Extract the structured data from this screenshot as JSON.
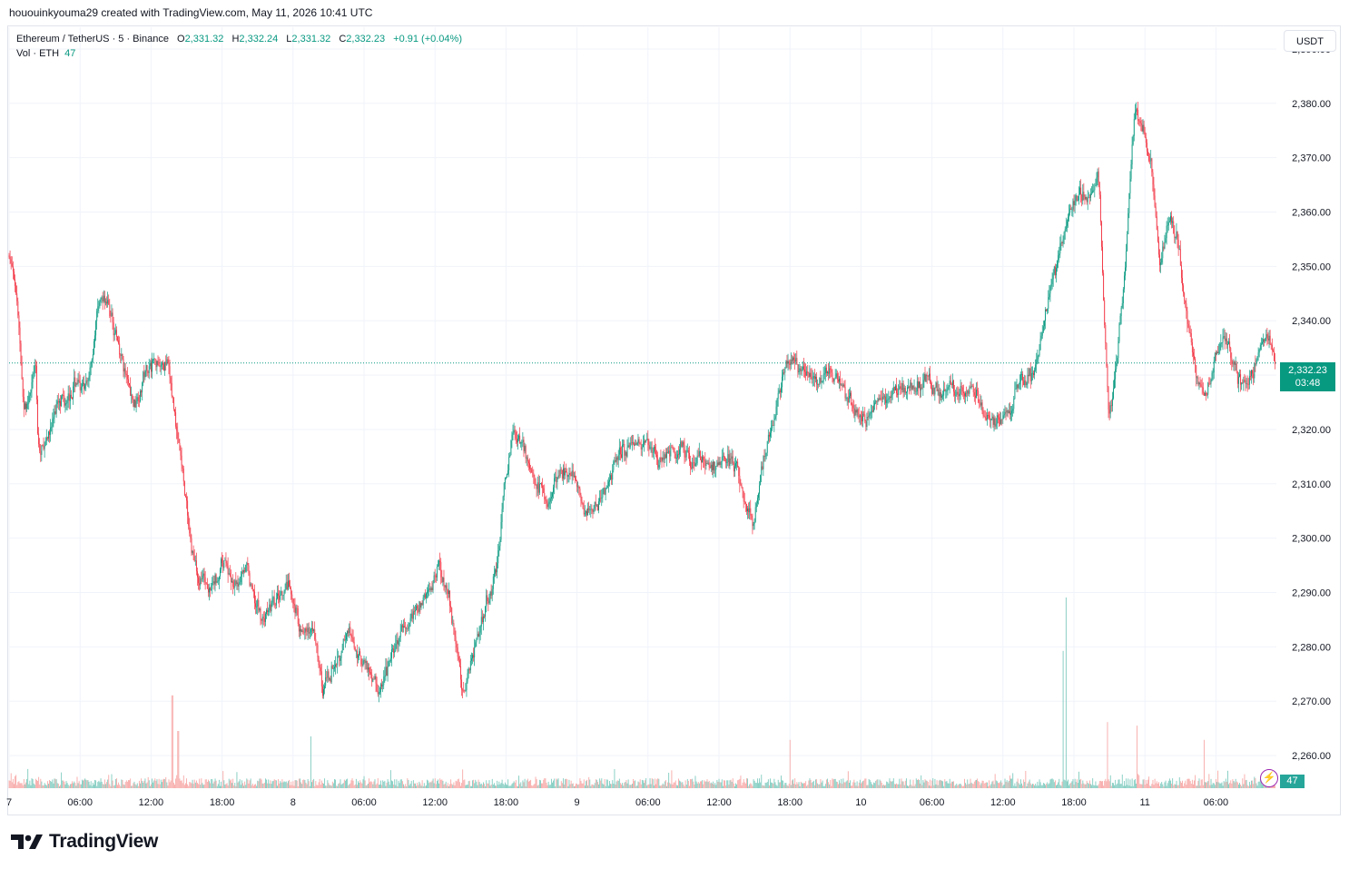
{
  "caption": "hououinkyouma29 created with TradingView.com, May 11, 2026 10:41 UTC",
  "legend": {
    "symbol": "Ethereum / TetherUS · 5 · Binance",
    "o_label": "O",
    "o_value": "2,331.32",
    "h_label": "H",
    "h_value": "2,332.24",
    "l_label": "L",
    "l_value": "2,331.32",
    "c_label": "C",
    "c_value": "2,332.23",
    "change": "+0.91 (+0.04%)",
    "vol_label": "Vol · ETH",
    "vol_value": "47"
  },
  "price_scale": {
    "unit_button": "USDT"
  },
  "last_price": {
    "value": "2,332.23",
    "countdown": "03:48"
  },
  "volume_tag": "47",
  "brand": {
    "name": "TradingView",
    "logo_icon": "tradingview-logo-icon"
  },
  "colors": {
    "up": "#089981",
    "down": "#f23645",
    "up_vol": "#7fcbbf",
    "down_vol": "#f7a9a7",
    "grid": "#f0f3fa"
  },
  "chart_data": {
    "type": "candlestick",
    "instrument": "Ethereum / TetherUS",
    "interval": "5",
    "exchange": "Binance",
    "ylim": [
      2254,
      2394
    ],
    "yticks": [
      2260,
      2270,
      2280,
      2290,
      2300,
      2310,
      2320,
      2330,
      2340,
      2350,
      2360,
      2370,
      2380,
      2390
    ],
    "ytick_labels": [
      "2,260.00",
      "2,270.00",
      "2,280.00",
      "2,290.00",
      "2,300.00",
      "2,310.00",
      "2,320.00",
      "2,330.00",
      "2,340.00",
      "2,350.00",
      "2,360.00",
      "2,370.00",
      "2,380.00",
      "2,390.00"
    ],
    "x_ticks": [
      {
        "label": "7",
        "h": 0
      },
      {
        "label": "06:00",
        "h": 6
      },
      {
        "label": "12:00",
        "h": 12
      },
      {
        "label": "18:00",
        "h": 18
      },
      {
        "label": "8",
        "h": 24
      },
      {
        "label": "06:00",
        "h": 30
      },
      {
        "label": "12:00",
        "h": 36
      },
      {
        "label": "18:00",
        "h": 42
      },
      {
        "label": "9",
        "h": 48
      },
      {
        "label": "06:00",
        "h": 54
      },
      {
        "label": "12:00",
        "h": 60
      },
      {
        "label": "18:00",
        "h": 66
      },
      {
        "label": "10",
        "h": 72
      },
      {
        "label": "06:00",
        "h": 78
      },
      {
        "label": "12:00",
        "h": 84
      },
      {
        "label": "18:00",
        "h": 90
      },
      {
        "label": "11",
        "h": 96
      },
      {
        "label": "06:00",
        "h": 102
      }
    ],
    "x_range_hours": [
      0,
      107
    ],
    "price_path": [
      [
        0,
        2352
      ],
      [
        0.7,
        2342
      ],
      [
        1.2,
        2322
      ],
      [
        2.2,
        2333
      ],
      [
        2.4,
        2315
      ],
      [
        3.3,
        2319
      ],
      [
        4.0,
        2325
      ],
      [
        5,
        2326
      ],
      [
        5.8,
        2330
      ],
      [
        6.3,
        2326
      ],
      [
        6.7,
        2330
      ],
      [
        7.5,
        2343
      ],
      [
        8.2,
        2344
      ],
      [
        9.3,
        2334
      ],
      [
        10.5,
        2324
      ],
      [
        11.3,
        2330
      ],
      [
        12.3,
        2333
      ],
      [
        13.3,
        2332
      ],
      [
        14,
        2322
      ],
      [
        14.7,
        2310
      ],
      [
        15.3,
        2298
      ],
      [
        16,
        2293
      ],
      [
        17,
        2290
      ],
      [
        18.2,
        2296
      ],
      [
        19,
        2290
      ],
      [
        19.8,
        2296
      ],
      [
        20.5,
        2290
      ],
      [
        21.3,
        2285
      ],
      [
        22.3,
        2288
      ],
      [
        23.5,
        2291
      ],
      [
        24.5,
        2284
      ],
      [
        25.7,
        2282
      ],
      [
        26.5,
        2272
      ],
      [
        27.5,
        2278
      ],
      [
        28.7,
        2282
      ],
      [
        29.5,
        2279
      ],
      [
        30.5,
        2275
      ],
      [
        31.3,
        2271
      ],
      [
        32.2,
        2278
      ],
      [
        33.5,
        2284
      ],
      [
        34.7,
        2288
      ],
      [
        35.5,
        2290
      ],
      [
        36.3,
        2295
      ],
      [
        37,
        2290
      ],
      [
        37.7,
        2281
      ],
      [
        38.3,
        2272
      ],
      [
        39.3,
        2280
      ],
      [
        40.3,
        2288
      ],
      [
        41.2,
        2295
      ],
      [
        41.8,
        2310
      ],
      [
        42.5,
        2319
      ],
      [
        43.3,
        2318
      ],
      [
        44,
        2313
      ],
      [
        45.3,
        2306
      ],
      [
        46.3,
        2311
      ],
      [
        47.3,
        2312
      ],
      [
        48.2,
        2307
      ],
      [
        49.3,
        2304
      ],
      [
        50.5,
        2310
      ],
      [
        51.5,
        2316
      ],
      [
        52.7,
        2317
      ],
      [
        53.7,
        2318
      ],
      [
        54.7,
        2314
      ],
      [
        55.7,
        2316
      ],
      [
        56.7,
        2317
      ],
      [
        57.5,
        2314
      ],
      [
        58.5,
        2314
      ],
      [
        59.5,
        2313
      ],
      [
        60.5,
        2315
      ],
      [
        61.5,
        2313
      ],
      [
        62.3,
        2305
      ],
      [
        62.8,
        2302
      ],
      [
        63.5,
        2312
      ],
      [
        64.3,
        2320
      ],
      [
        65.3,
        2329
      ],
      [
        66,
        2334
      ],
      [
        67.3,
        2330
      ],
      [
        68.5,
        2330
      ],
      [
        69.5,
        2331
      ],
      [
        70.7,
        2326
      ],
      [
        71.5,
        2323
      ],
      [
        72.3,
        2321
      ],
      [
        73.2,
        2325
      ],
      [
        74.5,
        2326
      ],
      [
        75.5,
        2328
      ],
      [
        76.5,
        2328
      ],
      [
        77.5,
        2329
      ],
      [
        78.5,
        2327
      ],
      [
        79.5,
        2328
      ],
      [
        80.5,
        2327
      ],
      [
        81.5,
        2327
      ],
      [
        82.5,
        2322
      ],
      [
        83.5,
        2322
      ],
      [
        84.5,
        2324
      ],
      [
        85.3,
        2329
      ],
      [
        86.5,
        2330
      ],
      [
        87.3,
        2339
      ],
      [
        88.3,
        2349
      ],
      [
        89.3,
        2358
      ],
      [
        90.3,
        2364
      ],
      [
        91.3,
        2362
      ],
      [
        92,
        2368
      ],
      [
        92.5,
        2340
      ],
      [
        92.9,
        2322
      ],
      [
        93.5,
        2332
      ],
      [
        94.2,
        2348
      ],
      [
        95,
        2378
      ],
      [
        95.7,
        2376
      ],
      [
        96.5,
        2368
      ],
      [
        97.2,
        2350
      ],
      [
        98,
        2360
      ],
      [
        98.7,
        2355
      ],
      [
        99.5,
        2340
      ],
      [
        100.3,
        2330
      ],
      [
        101,
        2325
      ],
      [
        101.8,
        2332
      ],
      [
        102.7,
        2337
      ],
      [
        103.5,
        2330
      ],
      [
        104.3,
        2328
      ],
      [
        105,
        2330
      ],
      [
        105.7,
        2335
      ],
      [
        106.3,
        2338
      ],
      [
        107,
        2332
      ]
    ],
    "volume_spikes": [
      {
        "h": 13.8,
        "size": 0.45
      },
      {
        "h": 14.3,
        "size": 0.25
      },
      {
        "h": 25.5,
        "size": 0.22
      },
      {
        "h": 66,
        "size": 0.2
      },
      {
        "h": 89.3,
        "size": 1.0
      },
      {
        "h": 89.1,
        "size": 0.7
      },
      {
        "h": 92.8,
        "size": 0.3
      },
      {
        "h": 95.3,
        "size": 0.28
      },
      {
        "h": 101,
        "size": 0.2
      }
    ]
  }
}
